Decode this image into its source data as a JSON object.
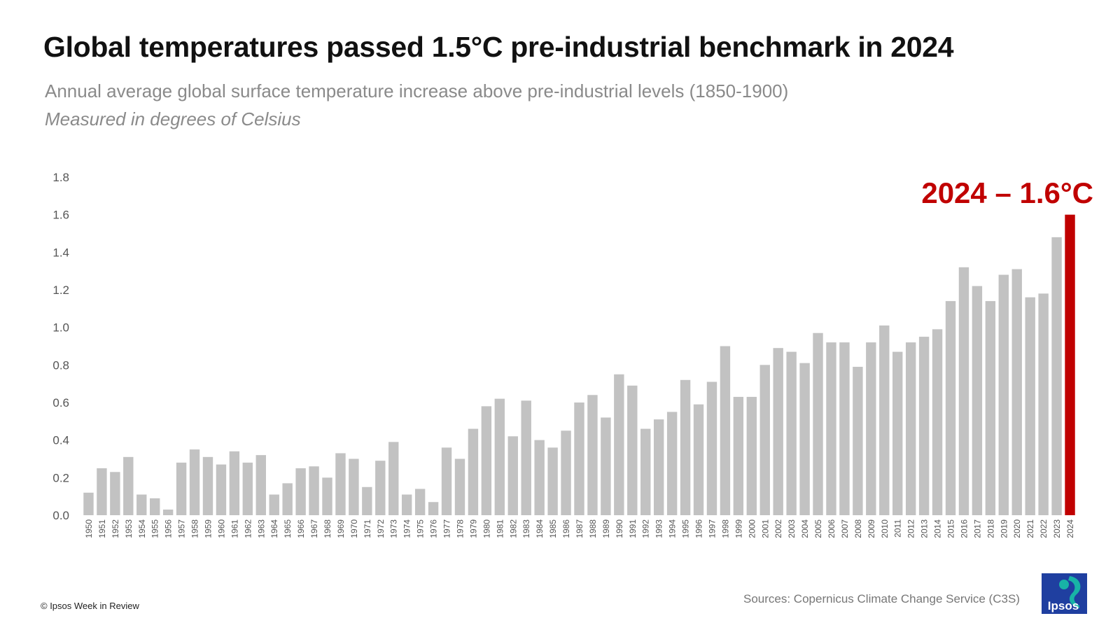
{
  "header": {
    "title": "Global temperatures passed 1.5°C pre-industrial benchmark in 2024",
    "subtitle": "Annual average global surface temperature increase above pre-industrial levels (1850-1900)",
    "note": "Measured in degrees of Celsius"
  },
  "footer": {
    "copyright": "© Ipsos Week in Review",
    "sources": "Sources:  Copernicus Climate Change Service (C3S)",
    "logo_text": "Ipsos"
  },
  "colors": {
    "bar": "#c2c2c2",
    "highlight": "#c00000",
    "axis_text": "#555555",
    "logo_blue": "#1f3fa0",
    "logo_teal": "#18b3a6"
  },
  "chart_data": {
    "type": "bar",
    "categories": [
      "1950",
      "1951",
      "1952",
      "1953",
      "1954",
      "1955",
      "1956",
      "1957",
      "1958",
      "1959",
      "1960",
      "1961",
      "1962",
      "1963",
      "1964",
      "1965",
      "1966",
      "1967",
      "1968",
      "1969",
      "1970",
      "1971",
      "1972",
      "1973",
      "1974",
      "1975",
      "1976",
      "1977",
      "1978",
      "1979",
      "1980",
      "1981",
      "1982",
      "1983",
      "1984",
      "1985",
      "1986",
      "1987",
      "1988",
      "1989",
      "1990",
      "1991",
      "1992",
      "1993",
      "1994",
      "1995",
      "1996",
      "1997",
      "1998",
      "1999",
      "2000",
      "2001",
      "2002",
      "2003",
      "2004",
      "2005",
      "2006",
      "2007",
      "2008",
      "2009",
      "2010",
      "2011",
      "2012",
      "2013",
      "2014",
      "2015",
      "2016",
      "2017",
      "2018",
      "2019",
      "2020",
      "2021",
      "2022",
      "2023",
      "2024"
    ],
    "values": [
      0.12,
      0.25,
      0.23,
      0.31,
      0.11,
      0.09,
      0.03,
      0.28,
      0.35,
      0.31,
      0.27,
      0.34,
      0.28,
      0.32,
      0.11,
      0.17,
      0.25,
      0.26,
      0.2,
      0.33,
      0.3,
      0.15,
      0.29,
      0.39,
      0.11,
      0.14,
      0.07,
      0.36,
      0.3,
      0.46,
      0.58,
      0.62,
      0.42,
      0.61,
      0.4,
      0.36,
      0.45,
      0.6,
      0.64,
      0.52,
      0.75,
      0.69,
      0.46,
      0.51,
      0.55,
      0.72,
      0.59,
      0.71,
      0.9,
      0.63,
      0.63,
      0.8,
      0.89,
      0.87,
      0.81,
      0.97,
      0.92,
      0.92,
      0.79,
      0.92,
      1.01,
      0.87,
      0.92,
      0.95,
      0.99,
      1.14,
      1.32,
      1.22,
      1.14,
      1.28,
      1.31,
      1.16,
      1.18,
      1.48,
      1.6
    ],
    "highlight_index": 74,
    "annotation": "2024 – 1.6°C",
    "ylim": [
      0,
      1.8
    ],
    "yticks": [
      "0.0",
      "0.2",
      "0.4",
      "0.6",
      "0.8",
      "1.0",
      "1.2",
      "1.4",
      "1.6",
      "1.8"
    ],
    "grid": false,
    "legend": "none"
  }
}
